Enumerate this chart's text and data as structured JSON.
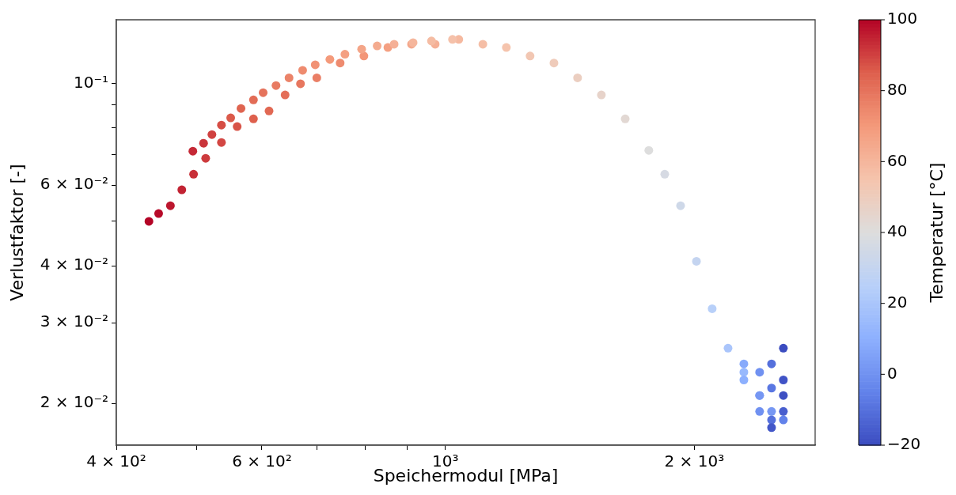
{
  "chart_data": {
    "type": "scatter",
    "xlabel": "Speichermodul [MPa]",
    "ylabel": "Verlustfaktor [-]",
    "clabel": "Temperatur [°C]",
    "log": "xy",
    "grid": false,
    "legend": false,
    "marker": "circle",
    "xlim": [
      400,
      2800
    ],
    "ylim": [
      0.0162,
      0.138
    ],
    "xticks": [
      {
        "value": 400,
        "label": "4 × 10²"
      },
      {
        "value": 500,
        "label": null
      },
      {
        "value": 600,
        "label": "6 × 10²"
      },
      {
        "value": 700,
        "label": null
      },
      {
        "value": 800,
        "label": null
      },
      {
        "value": 900,
        "label": null
      },
      {
        "value": 1000,
        "label": "10³"
      },
      {
        "value": 2000,
        "label": "2 × 10³"
      }
    ],
    "yticks": [
      {
        "value": 0.02,
        "label": "2 × 10⁻²"
      },
      {
        "value": 0.03,
        "label": "3 × 10⁻²"
      },
      {
        "value": 0.04,
        "label": "4 × 10⁻²"
      },
      {
        "value": 0.05,
        "label": null
      },
      {
        "value": 0.06,
        "label": "6 × 10⁻²"
      },
      {
        "value": 0.07,
        "label": null
      },
      {
        "value": 0.08,
        "label": null
      },
      {
        "value": 0.09,
        "label": null
      },
      {
        "value": 0.1,
        "label": "10⁻¹"
      }
    ],
    "clim": [
      -20,
      100
    ],
    "cticks": [
      -20,
      0,
      20,
      40,
      60,
      80,
      100
    ],
    "series": [
      {
        "x": [
          438,
          450,
          465,
          480,
          496,
          513,
          536,
          560,
          586,
          612,
          640,
          668,
          699,
          746,
          797,
          852,
          910,
          972,
          1038,
          1110,
          1185,
          1266,
          1353,
          1445,
          1544,
          1650,
          1762,
          1842,
          1925,
          2012,
          2102,
          2197,
          2296,
          2399,
          2480,
          2563,
          495,
          510,
          522,
          536,
          550,
          566,
          586,
          602,
          624,
          647,
          672,
          696,
          725,
          756,
          792,
          827,
          867,
          914,
          962,
          1020,
          2296,
          2399,
          2480,
          2563,
          2296,
          2399,
          2480,
          2563,
          2399,
          2480,
          2563,
          2563,
          2480
        ],
        "values": [
          0.05,
          0.052,
          0.0541,
          0.0586,
          0.0634,
          0.0687,
          0.0744,
          0.0806,
          0.0838,
          0.0872,
          0.0945,
          0.1,
          0.103,
          0.111,
          0.115,
          0.12,
          0.122,
          0.122,
          0.125,
          0.122,
          0.12,
          0.115,
          0.111,
          0.103,
          0.0945,
          0.0838,
          0.0715,
          0.0634,
          0.0541,
          0.0409,
          0.0322,
          0.0264,
          0.0234,
          0.0208,
          0.0192,
          0.0184,
          0.0712,
          0.0741,
          0.0774,
          0.0812,
          0.0842,
          0.0883,
          0.0922,
          0.0956,
          0.0991,
          0.103,
          0.107,
          0.11,
          0.113,
          0.116,
          0.119,
          0.121,
          0.122,
          0.123,
          0.124,
          0.125,
          0.0244,
          0.0234,
          0.0244,
          0.0264,
          0.0225,
          0.0208,
          0.0216,
          0.0225,
          0.0192,
          0.0184,
          0.0192,
          0.0208,
          0.0177
        ],
        "cvalues": [
          100,
          99,
          97,
          95,
          93,
          91,
          89,
          87,
          85,
          83,
          81,
          79,
          77,
          74,
          71,
          68,
          65,
          62,
          59,
          57,
          55,
          53,
          51,
          49,
          46,
          43,
          40,
          37,
          34,
          30,
          25,
          20,
          14,
          8,
          2,
          -5,
          94,
          92,
          90,
          88,
          86,
          84,
          82,
          80,
          78,
          76,
          74,
          72,
          70,
          68,
          66,
          64,
          62,
          60,
          58,
          56,
          8,
          0,
          -10,
          -20,
          10,
          2,
          -8,
          -18,
          0,
          -10,
          -15,
          -19,
          -17
        ]
      }
    ]
  }
}
